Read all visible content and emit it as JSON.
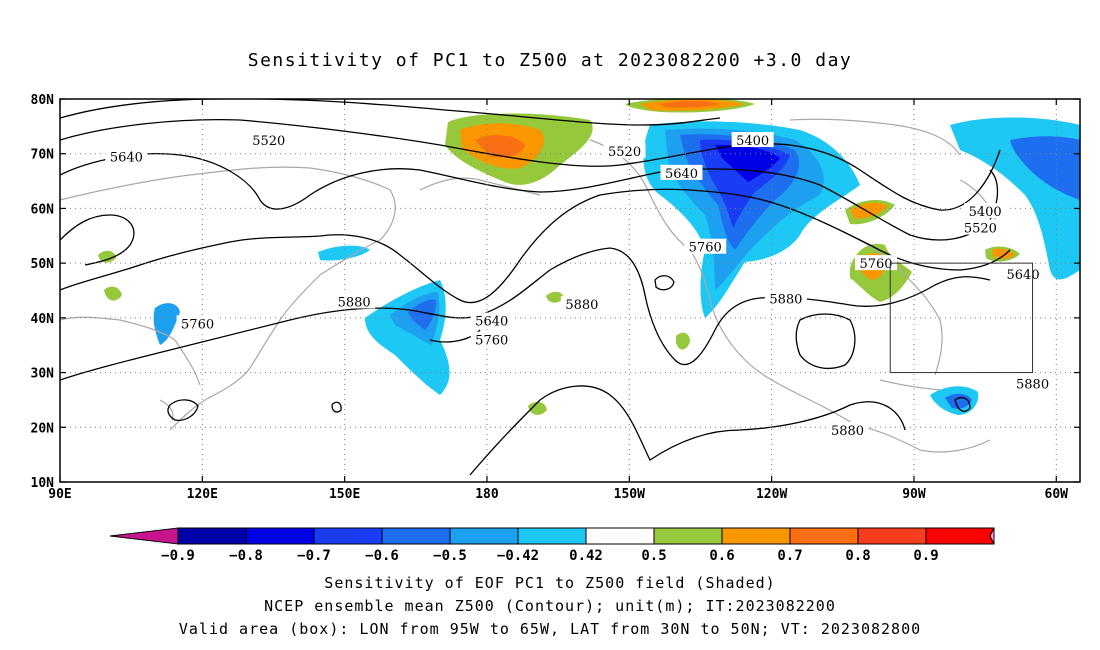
{
  "title": "Sensitivity of PC1 to Z500 at 2023082200 +3.0 day",
  "map": {
    "lat_labels": [
      "80N",
      "70N",
      "60N",
      "50N",
      "40N",
      "30N",
      "20N",
      "10N"
    ],
    "lon_labels": [
      "90E",
      "120E",
      "150E",
      "180",
      "150W",
      "120W",
      "90W",
      "60W"
    ],
    "contour_labels": [
      {
        "text": "5520",
        "lon": 134,
        "lat": 72.5
      },
      {
        "text": "5640",
        "lon": 104,
        "lat": 69.5
      },
      {
        "text": "5520",
        "lon": -151,
        "lat": 70.5
      },
      {
        "text": "5400",
        "lon": -124,
        "lat": 72.5
      },
      {
        "text": "5640",
        "lon": -139,
        "lat": 66.5
      },
      {
        "text": "5400",
        "lon": -75,
        "lat": 59.5
      },
      {
        "text": "5520",
        "lon": -76,
        "lat": 56.5
      },
      {
        "text": "5760",
        "lon": -134,
        "lat": 53
      },
      {
        "text": "5760",
        "lon": -98,
        "lat": 50
      },
      {
        "text": "5640",
        "lon": -67,
        "lat": 48
      },
      {
        "text": "5880",
        "lon": -117,
        "lat": 43.5
      },
      {
        "text": "5880",
        "lon": 152,
        "lat": 43
      },
      {
        "text": "5880",
        "lon": -160,
        "lat": 42.5
      },
      {
        "text": "5640",
        "lon": -179,
        "lat": 39.5
      },
      {
        "text": "5760",
        "lon": -179,
        "lat": 36
      },
      {
        "text": "5760",
        "lon": 119,
        "lat": 39
      },
      {
        "text": "5880",
        "lon": -65,
        "lat": 28
      },
      {
        "text": "5880",
        "lon": -104,
        "lat": 19.5
      }
    ],
    "valid_box": {
      "lon_min": -95,
      "lon_max": -65,
      "lat_min": 30,
      "lat_max": 50
    }
  },
  "colorbar": {
    "labels": [
      "−0.9",
      "−0.8",
      "−0.7",
      "−0.6",
      "−0.5",
      "−0.42",
      "0.42",
      "0.5",
      "0.6",
      "0.7",
      "0.8",
      "0.9"
    ],
    "colors": [
      "#0000a8",
      "#0000e6",
      "#1a3cf5",
      "#1e6ef0",
      "#1ea0f0",
      "#1ec8f5",
      "#ffffff",
      "#96c83c",
      "#fa9600",
      "#fa6e14",
      "#fa3c1e",
      "#ff0000"
    ],
    "low_end_color": "#c8148c",
    "high_end_color": "#f5a0c8"
  },
  "footer": {
    "line1": "Sensitivity of EOF PC1 to Z500 field (Shaded)",
    "line2": "NCEP ensemble mean Z500 (Contour); unit(m); IT:2023082200",
    "line3": "Valid area (box): LON from 95W to 65W, LAT from 30N to 50N; VT: 2023082800"
  }
}
